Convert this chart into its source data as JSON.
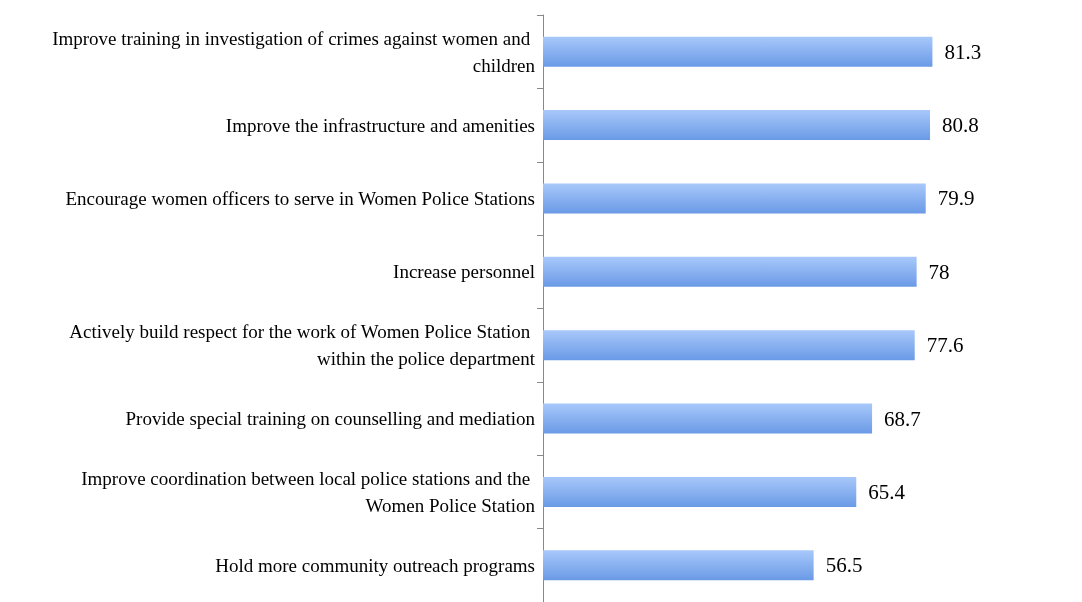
{
  "chart_data": {
    "type": "bar",
    "orientation": "horizontal",
    "categories": [
      "Improve training in investigation of crimes against women and children",
      "Improve the infrastructure and amenities",
      "Encourage women officers to serve in Women Police Stations",
      "Increase personnel",
      "Actively build respect for the work of Women Police Station within the police department",
      "Provide special training on counselling and mediation",
      "Improve coordination between local police stations and the Women Police Station",
      "Hold more community outreach programs"
    ],
    "values": [
      81.3,
      80.8,
      79.9,
      78,
      77.6,
      68.7,
      65.4,
      56.5
    ],
    "color": "#6a9ae6",
    "data_labels": true
  }
}
